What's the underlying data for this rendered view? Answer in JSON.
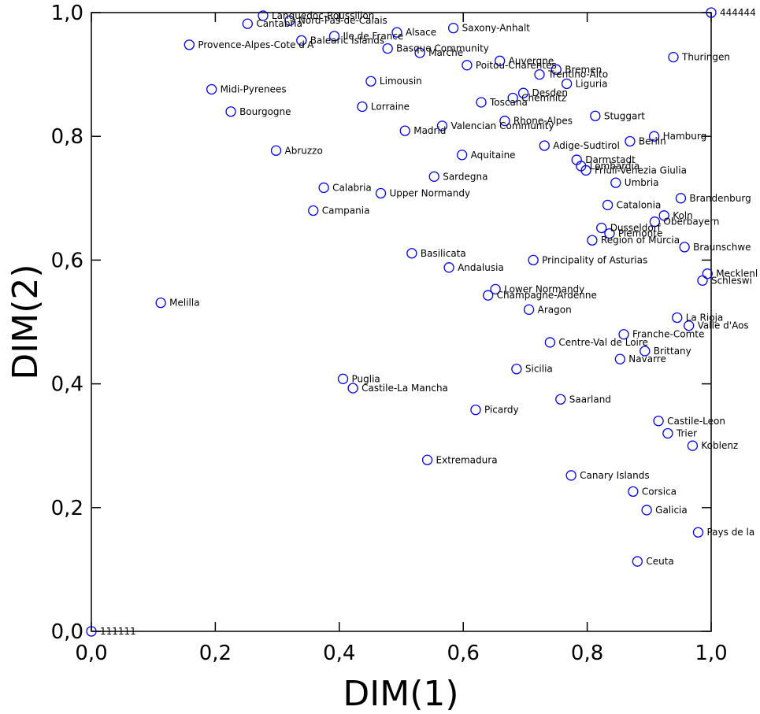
{
  "chart_data": {
    "type": "scatter",
    "xlabel": "DIM(1)",
    "ylabel": "DIM(2)",
    "xlim": [
      0,
      1
    ],
    "ylim": [
      0,
      1
    ],
    "xticks": [
      "0,0",
      "0,2",
      "0,4",
      "0,6",
      "0,8",
      "1,0"
    ],
    "yticks": [
      "0,0",
      "0,2",
      "0,4",
      "0,6",
      "0,8",
      "1,0"
    ],
    "grid": false,
    "marker_color": "#0000e6",
    "points": [
      {
        "label": "111111",
        "x": 0.0,
        "y": 0.0
      },
      {
        "label": "444444",
        "x": 1.0,
        "y": 1.0
      },
      {
        "label": "Languedoc-Roussillon",
        "x": 0.277,
        "y": 0.995
      },
      {
        "label": "Nord-Pas-de-Calais",
        "x": 0.32,
        "y": 0.987
      },
      {
        "label": "Cantabria",
        "x": 0.252,
        "y": 0.982
      },
      {
        "label": "Saxony-Anhalt",
        "x": 0.584,
        "y": 0.975
      },
      {
        "label": "Alsace",
        "x": 0.493,
        "y": 0.968
      },
      {
        "label": "Ile de France",
        "x": 0.392,
        "y": 0.962
      },
      {
        "label": "Balearic Islands",
        "x": 0.339,
        "y": 0.955
      },
      {
        "label": "Provence-Alpes-Cote d'A",
        "x": 0.158,
        "y": 0.948
      },
      {
        "label": "Basque Community",
        "x": 0.478,
        "y": 0.942
      },
      {
        "label": "Marche",
        "x": 0.53,
        "y": 0.935
      },
      {
        "label": "Thuringen",
        "x": 0.939,
        "y": 0.928
      },
      {
        "label": "Auvergne",
        "x": 0.659,
        "y": 0.922
      },
      {
        "label": "Poitou-Charentes",
        "x": 0.606,
        "y": 0.915
      },
      {
        "label": "Bremen",
        "x": 0.75,
        "y": 0.908
      },
      {
        "label": "Trentino-Alto",
        "x": 0.723,
        "y": 0.9
      },
      {
        "label": "Limousin",
        "x": 0.451,
        "y": 0.889
      },
      {
        "label": "Liguria",
        "x": 0.767,
        "y": 0.885
      },
      {
        "label": "Midi-Pyrenees",
        "x": 0.194,
        "y": 0.876
      },
      {
        "label": "Desden",
        "x": 0.697,
        "y": 0.87
      },
      {
        "label": "Chemnitz",
        "x": 0.68,
        "y": 0.862
      },
      {
        "label": "Toscana",
        "x": 0.629,
        "y": 0.855
      },
      {
        "label": "Lorraine",
        "x": 0.437,
        "y": 0.848
      },
      {
        "label": "Bourgogne",
        "x": 0.225,
        "y": 0.84
      },
      {
        "label": "Stuggart",
        "x": 0.813,
        "y": 0.833
      },
      {
        "label": "Rhone-Alpes",
        "x": 0.667,
        "y": 0.825
      },
      {
        "label": "Valencian Community",
        "x": 0.566,
        "y": 0.817
      },
      {
        "label": "Madrid",
        "x": 0.506,
        "y": 0.809
      },
      {
        "label": "Hamburg",
        "x": 0.908,
        "y": 0.8
      },
      {
        "label": "Berlin",
        "x": 0.869,
        "y": 0.792
      },
      {
        "label": "Adige-Sudtirol",
        "x": 0.731,
        "y": 0.785
      },
      {
        "label": "Abruzzo",
        "x": 0.298,
        "y": 0.777
      },
      {
        "label": "Aquitaine",
        "x": 0.598,
        "y": 0.77
      },
      {
        "label": "Darmstadt",
        "x": 0.783,
        "y": 0.762
      },
      {
        "label": "Lombardia",
        "x": 0.79,
        "y": 0.752
      },
      {
        "label": "Friuli-Venezia Giulia",
        "x": 0.798,
        "y": 0.745
      },
      {
        "label": "Sardegna",
        "x": 0.553,
        "y": 0.735
      },
      {
        "label": "Umbria",
        "x": 0.846,
        "y": 0.725
      },
      {
        "label": "Calabria",
        "x": 0.375,
        "y": 0.717
      },
      {
        "label": "Upper Normandy",
        "x": 0.467,
        "y": 0.708
      },
      {
        "label": "Brandenburg",
        "x": 0.951,
        "y": 0.7
      },
      {
        "label": "Catalonia",
        "x": 0.833,
        "y": 0.689
      },
      {
        "label": "Campania",
        "x": 0.358,
        "y": 0.68
      },
      {
        "label": "Koln",
        "x": 0.924,
        "y": 0.672
      },
      {
        "label": "Oberbayern",
        "x": 0.909,
        "y": 0.662
      },
      {
        "label": "Dusseldorf",
        "x": 0.823,
        "y": 0.652
      },
      {
        "label": "Piemonte",
        "x": 0.836,
        "y": 0.643
      },
      {
        "label": "Region of Murcia",
        "x": 0.808,
        "y": 0.632
      },
      {
        "label": "Braunschwe",
        "x": 0.957,
        "y": 0.621
      },
      {
        "label": "Basilicata",
        "x": 0.517,
        "y": 0.611
      },
      {
        "label": "Principality of Asturias",
        "x": 0.713,
        "y": 0.6
      },
      {
        "label": "Andalusia",
        "x": 0.577,
        "y": 0.588
      },
      {
        "label": "Mecklenl",
        "x": 0.994,
        "y": 0.578
      },
      {
        "label": "Schleswi",
        "x": 0.986,
        "y": 0.567
      },
      {
        "label": "Lower Normandy",
        "x": 0.652,
        "y": 0.553
      },
      {
        "label": "Champagne-Ardenne",
        "x": 0.64,
        "y": 0.543
      },
      {
        "label": "Melilla",
        "x": 0.112,
        "y": 0.531
      },
      {
        "label": "Aragon",
        "x": 0.706,
        "y": 0.52
      },
      {
        "label": "La Rioja",
        "x": 0.945,
        "y": 0.507
      },
      {
        "label": "Valle d'Aos",
        "x": 0.964,
        "y": 0.494
      },
      {
        "label": "Franche-Comte",
        "x": 0.859,
        "y": 0.48
      },
      {
        "label": "Centre-Val de Loire",
        "x": 0.74,
        "y": 0.467
      },
      {
        "label": "Brittany",
        "x": 0.893,
        "y": 0.453
      },
      {
        "label": "Navarre",
        "x": 0.853,
        "y": 0.44
      },
      {
        "label": "Sicilia",
        "x": 0.686,
        "y": 0.424
      },
      {
        "label": "Puglia",
        "x": 0.406,
        "y": 0.408
      },
      {
        "label": "Castile-La Mancha",
        "x": 0.422,
        "y": 0.393
      },
      {
        "label": "Saarland",
        "x": 0.757,
        "y": 0.375
      },
      {
        "label": "Picardy",
        "x": 0.62,
        "y": 0.358
      },
      {
        "label": "Castile-Leon",
        "x": 0.915,
        "y": 0.34
      },
      {
        "label": "Trier",
        "x": 0.93,
        "y": 0.32
      },
      {
        "label": "Koblenz",
        "x": 0.97,
        "y": 0.3
      },
      {
        "label": "Extremadura",
        "x": 0.542,
        "y": 0.277
      },
      {
        "label": "Canary Islands",
        "x": 0.774,
        "y": 0.252
      },
      {
        "label": "Corsica",
        "x": 0.874,
        "y": 0.226
      },
      {
        "label": "Galicia",
        "x": 0.896,
        "y": 0.196
      },
      {
        "label": "Pays de la",
        "x": 0.979,
        "y": 0.16
      },
      {
        "label": "Ceuta",
        "x": 0.881,
        "y": 0.113
      }
    ]
  }
}
